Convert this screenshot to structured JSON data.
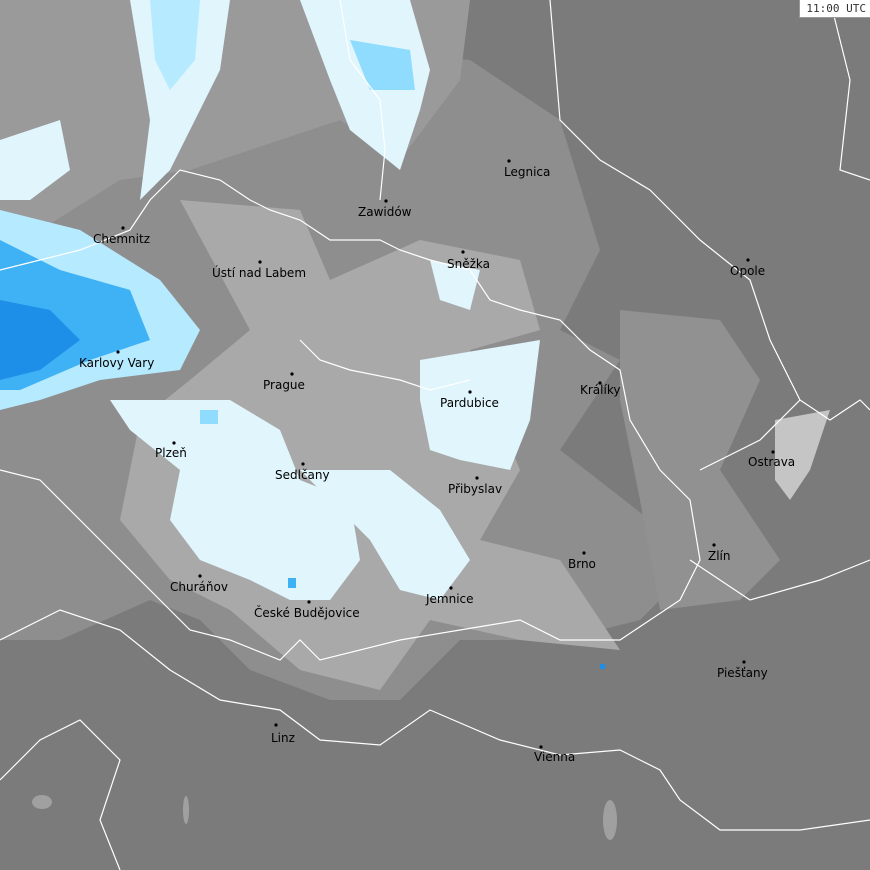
{
  "timestamp": "11:00 UTC",
  "colors": {
    "land_dark": "#7b7b7b",
    "land_mid": "#8e8e8e",
    "cloud_light": "#a9a9a9",
    "precip_light": "#e0f5fc",
    "precip_mid": "#b6eaff",
    "precip_heavy": "#3fb2f5",
    "precip_strong": "#1d8fe8",
    "border": "#ffffff"
  },
  "cities": [
    {
      "name": "Legnica"
    },
    {
      "name": "Zawidów"
    },
    {
      "name": "Chemnitz"
    },
    {
      "name": "Ústí nad Labem"
    },
    {
      "name": "Sněžka"
    },
    {
      "name": "Opole"
    },
    {
      "name": "Karlovy Vary"
    },
    {
      "name": "Prague"
    },
    {
      "name": "Králíky"
    },
    {
      "name": "Pardubice"
    },
    {
      "name": "Plzeň"
    },
    {
      "name": "Ostrava"
    },
    {
      "name": "Sedlčany"
    },
    {
      "name": "Přibyslav"
    },
    {
      "name": "Zlín"
    },
    {
      "name": "Brno"
    },
    {
      "name": "Churáňov"
    },
    {
      "name": "Jemnice"
    },
    {
      "name": "České Budějovice"
    },
    {
      "name": "Piešťany"
    },
    {
      "name": "Linz"
    },
    {
      "name": "Vienna"
    }
  ]
}
